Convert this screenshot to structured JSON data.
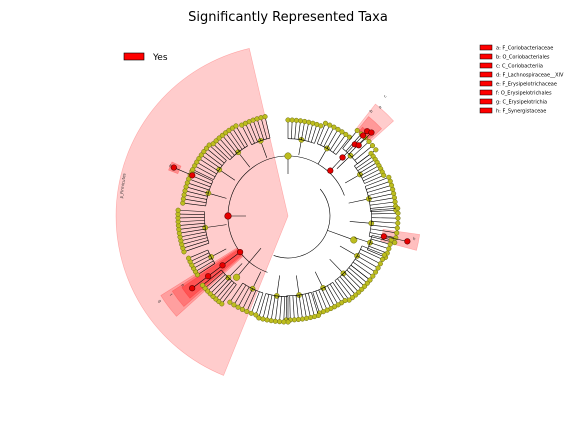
{
  "title": "Significantly Represented Taxa",
  "group_legend": {
    "label": "Yes",
    "color": "#ff0000"
  },
  "clade_legend": [
    "a: F_Coriobacteriaceae",
    "b: O_Coriobacteriales",
    "c: C_Coriobacteriia",
    "d: F_Lachnospiraceae__XIV",
    "e: F_Erysipelotrichaceae",
    "f: O_Erysipelotrichales",
    "g: C_Erysipelotrichia",
    "h: F_Synergistaceae"
  ],
  "sector_labels": {
    "firmicutes": "p_Firmicutes",
    "a": "a",
    "b": "b",
    "c": "c",
    "d": "d",
    "e": "e",
    "f": "f",
    "g": "g",
    "h": "h"
  },
  "colors": {
    "highlight": "#ff0000",
    "node": "#bdbd1f",
    "node_stroke": "#6b6b10"
  }
}
